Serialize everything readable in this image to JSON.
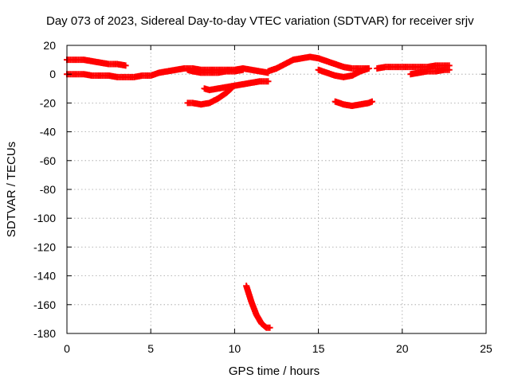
{
  "chart_data": {
    "type": "scatter",
    "title": "Day 073 of 2023, Sidereal Day-to-day VTEC variation (SDTVAR) for receiver srjv",
    "xlabel": "GPS time / hours",
    "ylabel": "SDTVAR / TECUs",
    "xlim": [
      0,
      25
    ],
    "ylim": [
      -180,
      20
    ],
    "xticks": [
      0,
      5,
      10,
      15,
      20,
      25
    ],
    "yticks": [
      20,
      0,
      -20,
      -40,
      -60,
      -80,
      -100,
      -120,
      -140,
      -160,
      -180
    ],
    "grid": true,
    "legend": "none",
    "marker": "plus",
    "color": "#ff0000",
    "series": [
      {
        "points": [
          [
            0,
            10
          ],
          [
            0.5,
            10
          ],
          [
            1,
            10
          ],
          [
            1.5,
            9
          ],
          [
            2,
            8
          ],
          [
            2.5,
            7
          ],
          [
            3,
            7
          ],
          [
            3.5,
            6
          ]
        ]
      },
      {
        "points": [
          [
            0,
            0
          ],
          [
            0.5,
            0
          ],
          [
            1,
            0
          ],
          [
            1.5,
            -1
          ],
          [
            2,
            -1
          ],
          [
            2.5,
            -1
          ],
          [
            3,
            -2
          ],
          [
            3.5,
            -2
          ],
          [
            4,
            -2
          ],
          [
            4.5,
            -1
          ],
          [
            5,
            -1
          ],
          [
            5.5,
            1
          ],
          [
            6,
            2
          ],
          [
            6.5,
            3
          ],
          [
            7,
            4
          ],
          [
            7.5,
            4
          ],
          [
            8,
            3
          ],
          [
            8.5,
            3
          ],
          [
            9,
            3
          ],
          [
            9.5,
            3
          ],
          [
            10,
            3
          ],
          [
            10.5,
            4
          ],
          [
            11,
            3
          ],
          [
            11.5,
            2
          ],
          [
            12,
            1
          ]
        ]
      },
      {
        "points": [
          [
            7.2,
            3
          ],
          [
            7.5,
            2
          ],
          [
            8,
            1
          ],
          [
            8.5,
            1
          ],
          [
            9,
            1
          ],
          [
            9.5,
            2
          ],
          [
            10,
            2
          ],
          [
            10.5,
            3
          ]
        ]
      },
      {
        "points": [
          [
            7.2,
            -20
          ],
          [
            7.5,
            -20
          ],
          [
            8,
            -21
          ],
          [
            8.5,
            -20
          ],
          [
            9,
            -17
          ],
          [
            9.5,
            -13
          ],
          [
            9.8,
            -10
          ]
        ]
      },
      {
        "points": [
          [
            8.2,
            -10
          ],
          [
            8.5,
            -11
          ],
          [
            9,
            -10
          ],
          [
            9.5,
            -9
          ],
          [
            10,
            -8
          ],
          [
            10.5,
            -7
          ],
          [
            11,
            -6
          ],
          [
            11.5,
            -5
          ],
          [
            12,
            -5
          ]
        ]
      },
      {
        "points": [
          [
            12,
            2
          ],
          [
            12.5,
            4
          ],
          [
            13,
            7
          ],
          [
            13.5,
            10
          ],
          [
            14,
            11
          ],
          [
            14.5,
            12
          ],
          [
            15,
            11
          ],
          [
            15.5,
            9
          ],
          [
            16,
            7
          ],
          [
            16.5,
            5
          ],
          [
            17,
            4
          ],
          [
            17.5,
            4
          ],
          [
            18,
            4
          ]
        ]
      },
      {
        "points": [
          [
            15,
            3
          ],
          [
            15.5,
            1
          ],
          [
            16,
            -1
          ],
          [
            16.5,
            -2
          ],
          [
            17,
            -1
          ],
          [
            17.5,
            2
          ],
          [
            18,
            4
          ]
        ]
      },
      {
        "points": [
          [
            16,
            -19
          ],
          [
            16.5,
            -21
          ],
          [
            17,
            -22
          ],
          [
            17.5,
            -21
          ],
          [
            18,
            -20
          ],
          [
            18.2,
            -19
          ]
        ]
      },
      {
        "points": [
          [
            18.5,
            4
          ],
          [
            19,
            5
          ],
          [
            19.5,
            5
          ],
          [
            20,
            5
          ],
          [
            20.5,
            5
          ],
          [
            21,
            5
          ],
          [
            21.5,
            5
          ],
          [
            22,
            6
          ],
          [
            22.5,
            6
          ],
          [
            22.8,
            6
          ]
        ]
      },
      {
        "points": [
          [
            20.5,
            0
          ],
          [
            21,
            1
          ],
          [
            21.5,
            2
          ],
          [
            22,
            2
          ],
          [
            22.5,
            3
          ],
          [
            22.8,
            3
          ]
        ]
      },
      {
        "points": [
          [
            10.7,
            -147
          ],
          [
            11,
            -158
          ],
          [
            11.3,
            -167
          ],
          [
            11.6,
            -173
          ],
          [
            11.9,
            -176
          ],
          [
            12.1,
            -176
          ]
        ]
      }
    ]
  }
}
